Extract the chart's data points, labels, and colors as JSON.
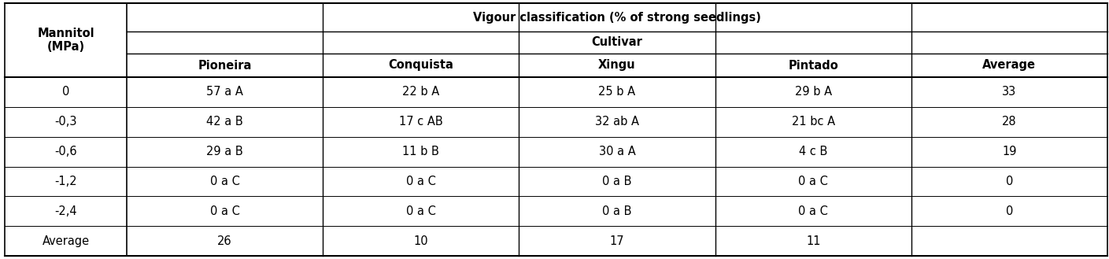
{
  "col_header_top": "Vigour classification (% of strong seedlings)",
  "col_header_mid": "Cultivar",
  "col_headers": [
    "Pioneira",
    "Conquista",
    "Xingu",
    "Pintado",
    "Average"
  ],
  "row_header_label": "Mannitol\n(MPa)",
  "row_labels": [
    "0",
    "-0,3",
    "-0,6",
    "-1,2",
    "-2,4",
    "Average"
  ],
  "table_data": [
    [
      "57 a A",
      "22 b A",
      "25 b A",
      "29 b A",
      "33"
    ],
    [
      "42 a B",
      "17 c AB",
      "32 ab A",
      "21 bc A",
      "28"
    ],
    [
      "29 a B",
      "11 b B",
      "30 a A",
      "4 c B",
      "19"
    ],
    [
      "0 a C",
      "0 a C",
      "0 a B",
      "0 a C",
      "0"
    ],
    [
      "0 a C",
      "0 a C",
      "0 a B",
      "0 a C",
      "0"
    ],
    [
      "26",
      "10",
      "17",
      "11",
      ""
    ]
  ],
  "bg_color": "#ffffff",
  "text_color": "#000000",
  "font_size": 10.5,
  "header_font_size": 10.5,
  "fig_width": 14.09,
  "fig_height": 3.29,
  "dpi": 100
}
